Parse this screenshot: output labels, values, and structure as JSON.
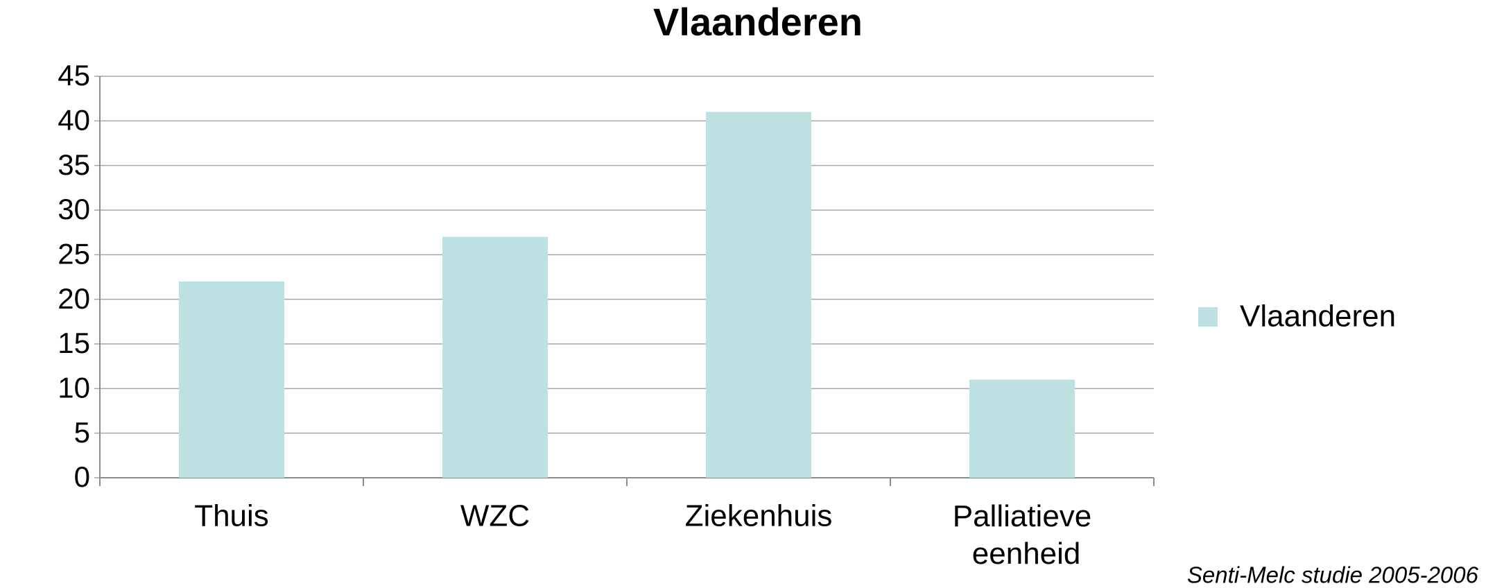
{
  "chart_data": {
    "type": "bar",
    "title": "Vlaanderen",
    "categories": [
      "Thuis",
      "WZC",
      "Ziekenhuis",
      "Palliatieve eenheid"
    ],
    "series": [
      {
        "name": "Vlaanderen",
        "color": "#bde0e3",
        "values": [
          22,
          27,
          41,
          11
        ]
      }
    ],
    "ylim": [
      0,
      45
    ],
    "yticks": [
      0,
      5,
      10,
      15,
      20,
      25,
      30,
      35,
      40,
      45
    ],
    "grid": true,
    "legend": "right",
    "annotation": "Senti-Melc studie 2005-2006"
  }
}
